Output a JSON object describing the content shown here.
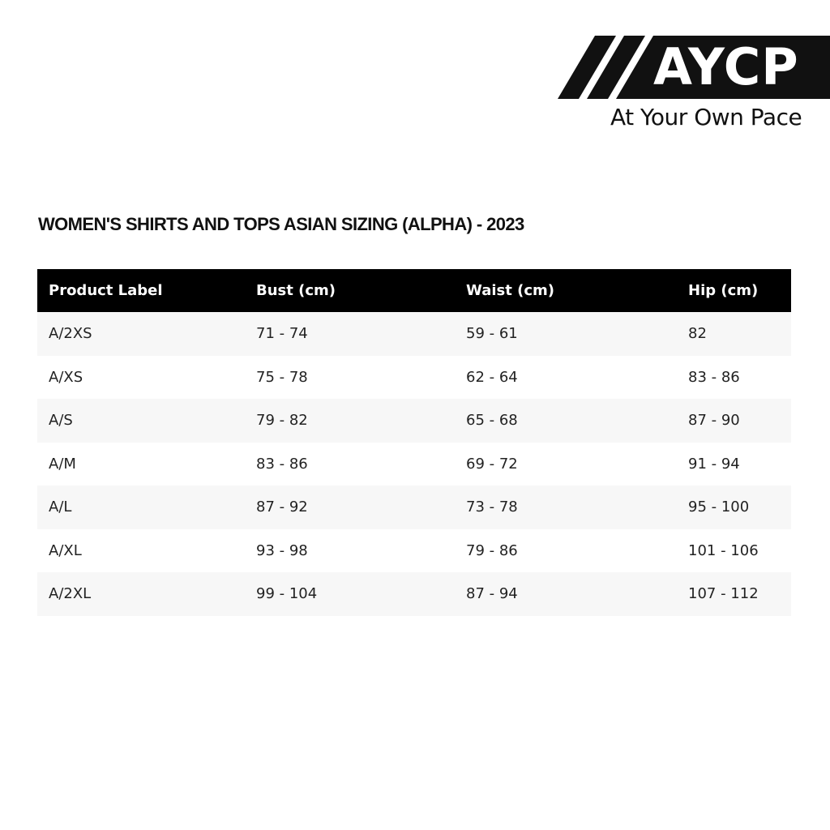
{
  "brand": {
    "logo_text": "AYCP",
    "tagline": "At Your Own Pace"
  },
  "title": "WOMEN'S SHIRTS AND TOPS ASIAN SIZING (ALPHA) - 2023",
  "table": {
    "headers": [
      "Product Label",
      "Bust (cm)",
      "Waist (cm)",
      "Hip (cm)"
    ],
    "rows": [
      [
        "A/2XS",
        "71 - 74",
        "59 - 61",
        "82"
      ],
      [
        "A/XS",
        "75 - 78",
        "62 - 64",
        "83 - 86"
      ],
      [
        "A/S",
        "79 - 82",
        "65 - 68",
        "87 - 90"
      ],
      [
        "A/M",
        "83 - 86",
        "69 - 72",
        "91 - 94"
      ],
      [
        "A/L",
        "87 - 92",
        "73 - 78",
        "95 - 100"
      ],
      [
        "A/XL",
        "93 - 98",
        "79 - 86",
        "101 - 106"
      ],
      [
        "A/2XL",
        "99 - 104",
        "87 - 94",
        "107 - 112"
      ]
    ]
  }
}
